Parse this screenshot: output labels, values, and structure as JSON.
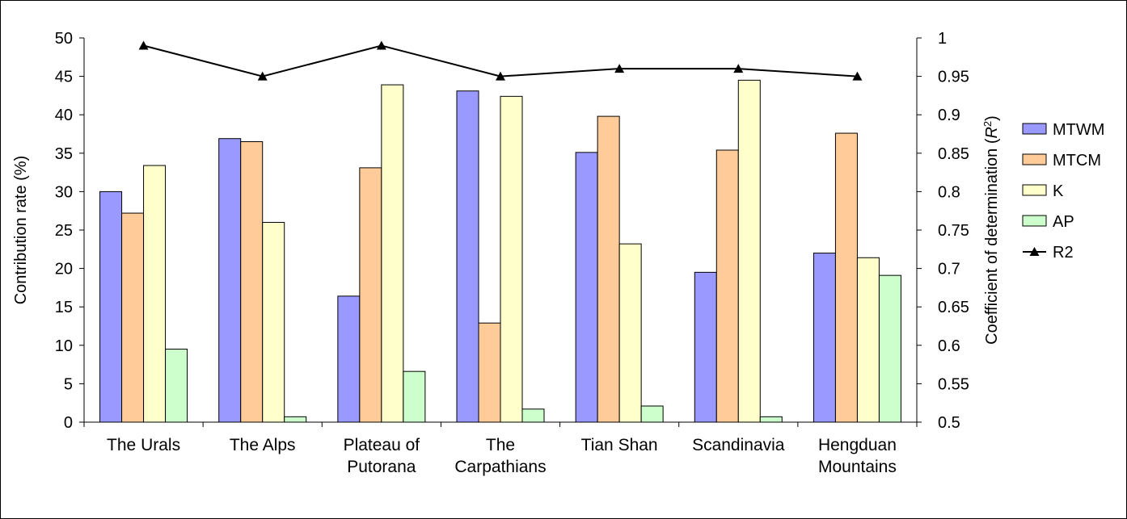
{
  "chart_data": {
    "type": "bar",
    "categories": [
      [
        "The Urals"
      ],
      [
        "The Alps"
      ],
      [
        "Plateau of",
        "Putorana"
      ],
      [
        "The",
        "Carpathians"
      ],
      [
        "Tian Shan"
      ],
      [
        "Scandinavia"
      ],
      [
        "Hengduan",
        "Mountains"
      ]
    ],
    "series": [
      {
        "name": "MTWM",
        "color": "#9999FF",
        "values": [
          30.0,
          36.9,
          16.4,
          43.1,
          35.1,
          19.5,
          22.0
        ]
      },
      {
        "name": "MTCM",
        "color": "#FFCC99",
        "values": [
          27.2,
          36.5,
          33.1,
          12.9,
          39.8,
          35.4,
          37.6
        ]
      },
      {
        "name": "K",
        "color": "#FFFFCC",
        "values": [
          33.4,
          26.0,
          43.9,
          42.4,
          23.2,
          44.5,
          21.4
        ]
      },
      {
        "name": "AP",
        "color": "#CCFFCC",
        "values": [
          9.5,
          0.7,
          6.6,
          1.7,
          2.1,
          0.7,
          19.1
        ]
      }
    ],
    "line_series": {
      "name": "R2",
      "color": "#000000",
      "values": [
        0.99,
        0.95,
        0.99,
        0.95,
        0.96,
        0.96,
        0.95
      ]
    },
    "ylabel": "Contribution rate (%)",
    "y2label_prefix": "Coefficient of determination (",
    "y2label_symbol": "R",
    "y2label_sup": "2",
    "y2label_suffix": ")",
    "ylim": [
      0,
      50
    ],
    "yticks": [
      "0",
      "5",
      "10",
      "15",
      "20",
      "25",
      "30",
      "35",
      "40",
      "45",
      "50"
    ],
    "y2lim": [
      0.5,
      1.0
    ],
    "y2ticks": [
      "0.5",
      "0.55",
      "0.6",
      "0.65",
      "0.7",
      "0.75",
      "0.8",
      "0.85",
      "0.9",
      "0.95",
      "1"
    ],
    "grid": false,
    "legend_position": "right",
    "legend": [
      "MTWM",
      "MTCM",
      "K",
      "AP",
      "R2"
    ]
  }
}
